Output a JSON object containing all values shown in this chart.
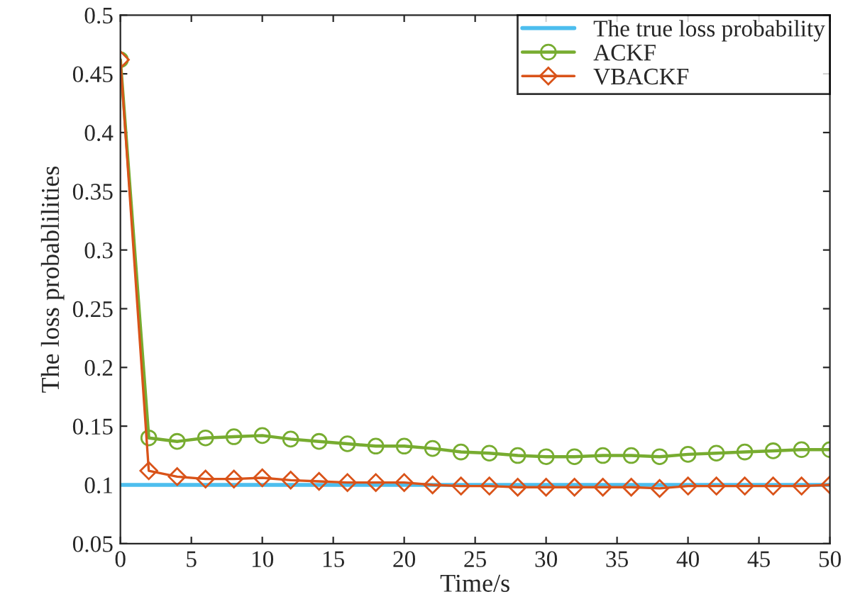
{
  "chart_data": {
    "type": "line",
    "xlabel": "Time/s",
    "ylabel": "The loss probablilities",
    "xlim": [
      0,
      50
    ],
    "ylim": [
      0.05,
      0.5
    ],
    "xticks": [
      0,
      5,
      10,
      15,
      20,
      25,
      30,
      35,
      40,
      45,
      50
    ],
    "yticks": [
      0.05,
      0.1,
      0.15,
      0.2,
      0.25,
      0.3,
      0.35,
      0.4,
      0.45,
      0.5
    ],
    "legend": "top right",
    "grid": false,
    "series": [
      {
        "name": "The true loss probability",
        "color": "#4dbeee",
        "marker": "none",
        "x": [
          0,
          50
        ],
        "values": [
          0.1,
          0.1
        ]
      },
      {
        "name": "ACKF",
        "color": "#77ac30",
        "marker": "circle",
        "x": [
          0,
          2,
          4,
          6,
          8,
          10,
          12,
          14,
          16,
          18,
          20,
          22,
          24,
          26,
          28,
          30,
          32,
          34,
          36,
          38,
          40,
          42,
          44,
          46,
          48,
          50
        ],
        "values": [
          0.462,
          0.14,
          0.137,
          0.14,
          0.141,
          0.142,
          0.139,
          0.137,
          0.135,
          0.133,
          0.133,
          0.131,
          0.128,
          0.127,
          0.125,
          0.124,
          0.124,
          0.125,
          0.125,
          0.124,
          0.126,
          0.127,
          0.128,
          0.129,
          0.13,
          0.13
        ]
      },
      {
        "name": "VBACKF",
        "color": "#d95319",
        "marker": "diamond",
        "x": [
          0,
          2,
          4,
          6,
          8,
          10,
          12,
          14,
          16,
          18,
          20,
          22,
          24,
          26,
          28,
          30,
          32,
          34,
          36,
          38,
          40,
          42,
          44,
          46,
          48,
          50
        ],
        "values": [
          0.462,
          0.112,
          0.107,
          0.105,
          0.105,
          0.106,
          0.104,
          0.103,
          0.102,
          0.102,
          0.102,
          0.1,
          0.099,
          0.099,
          0.098,
          0.098,
          0.098,
          0.098,
          0.098,
          0.097,
          0.099,
          0.099,
          0.099,
          0.099,
          0.099,
          0.1
        ]
      }
    ]
  }
}
